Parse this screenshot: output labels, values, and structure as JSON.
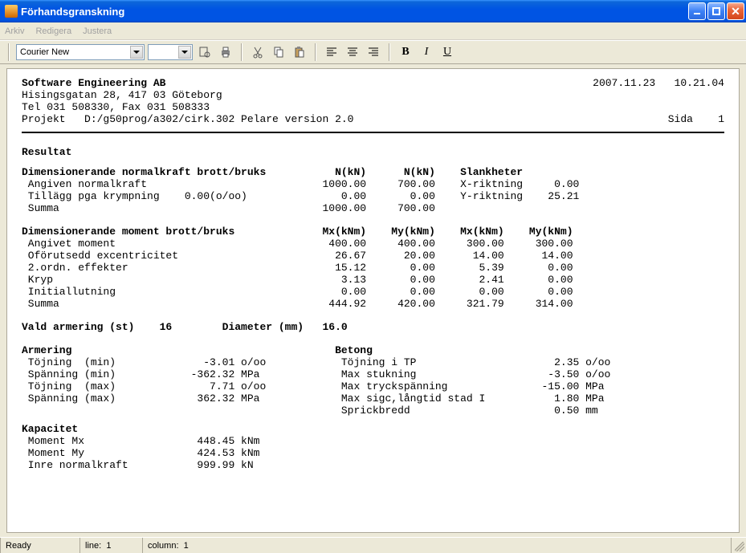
{
  "window": {
    "title": "Förhandsgranskning"
  },
  "menu": {
    "items": [
      "Arkiv",
      "Redigera",
      "Justera"
    ]
  },
  "toolbar": {
    "font": "Courier New"
  },
  "header": {
    "company": "Software Engineering AB",
    "address": "Hisingsgatan 28, 417 03 Göteborg",
    "phone": "Tel 031 508330, Fax 031 508333",
    "project_label": "Projekt",
    "project_path": "D:/g50prog/a302/cirk.302 Pelare version 2.0",
    "date": "2007.11.23",
    "time": "10.21.04",
    "page_label": "Sida",
    "page_num": "1"
  },
  "resultat": {
    "title": "Resultat"
  },
  "normal": {
    "title": "Dimensionerande normalkraft brott/bruks",
    "col1": "N(kN)",
    "col2": "N(kN)",
    "col3": "Slankheter",
    "rows": [
      {
        "label": "Angiven normalkraft",
        "extra": "",
        "v1": "1000.00",
        "v2": "700.00",
        "s_label": "X-riktning",
        "s_val": "0.00"
      },
      {
        "label": "Tillägg pga krympning",
        "extra": "0.00(o/oo)",
        "v1": "0.00",
        "v2": "0.00",
        "s_label": "Y-riktning",
        "s_val": "25.21"
      },
      {
        "label": "Summa",
        "extra": "",
        "v1": "1000.00",
        "v2": "700.00",
        "s_label": "",
        "s_val": ""
      }
    ]
  },
  "moment": {
    "title": "Dimensionerande moment brott/bruks",
    "col1": "Mx(kNm)",
    "col2": "My(kNm)",
    "col3": "Mx(kNm)",
    "col4": "My(kNm)",
    "rows": [
      {
        "label": "Angivet moment",
        "v1": "400.00",
        "v2": "400.00",
        "v3": "300.00",
        "v4": "300.00"
      },
      {
        "label": "Oförutsedd excentricitet",
        "v1": "26.67",
        "v2": "20.00",
        "v3": "14.00",
        "v4": "14.00"
      },
      {
        "label": "2.ordn. effekter",
        "v1": "15.12",
        "v2": "0.00",
        "v3": "5.39",
        "v4": "0.00"
      },
      {
        "label": "Kryp",
        "v1": "3.13",
        "v2": "0.00",
        "v3": "2.41",
        "v4": "0.00"
      },
      {
        "label": "Initiallutning",
        "v1": "0.00",
        "v2": "0.00",
        "v3": "0.00",
        "v4": "0.00"
      },
      {
        "label": "Summa",
        "v1": "444.92",
        "v2": "420.00",
        "v3": "321.79",
        "v4": "314.00"
      }
    ]
  },
  "armering": {
    "title_line": {
      "l1": "Vald armering (st)",
      "v1": "16",
      "l2": "Diameter (mm)",
      "v2": "16.0"
    },
    "left_title": "Armering",
    "right_title": "Betong",
    "left_rows": [
      {
        "label": "Töjning  (min)",
        "val": "-3.01",
        "unit": "o/oo"
      },
      {
        "label": "Spänning (min)",
        "val": "-362.32",
        "unit": "MPa"
      },
      {
        "label": "Töjning  (max)",
        "val": "7.71",
        "unit": "o/oo"
      },
      {
        "label": "Spänning (max)",
        "val": "362.32",
        "unit": "MPa"
      }
    ],
    "right_rows": [
      {
        "label": "Töjning i TP",
        "val": "2.35",
        "unit": "o/oo"
      },
      {
        "label": "Max stukning",
        "val": "-3.50",
        "unit": "o/oo"
      },
      {
        "label": "Max tryckspänning",
        "val": "-15.00",
        "unit": "MPa"
      },
      {
        "label": "Max sigc,långtid stad I",
        "val": "1.80",
        "unit": "MPa"
      },
      {
        "label": "Sprickbredd",
        "val": "0.50",
        "unit": "mm"
      }
    ]
  },
  "kapacitet": {
    "title": "Kapacitet",
    "rows": [
      {
        "label": "Moment Mx",
        "val": "448.45",
        "unit": "kNm"
      },
      {
        "label": "Moment My",
        "val": "424.53",
        "unit": "kNm"
      },
      {
        "label": "Inre normalkraft",
        "val": "999.99",
        "unit": "kN"
      }
    ]
  },
  "status": {
    "ready": "Ready",
    "line_label": "line:",
    "line": "1",
    "col_label": "column:",
    "col": "1"
  },
  "colors": {
    "titlebar": "#0054e3",
    "bg": "#ece9d8",
    "doc_bg": "#ffffff",
    "text": "#000000"
  }
}
